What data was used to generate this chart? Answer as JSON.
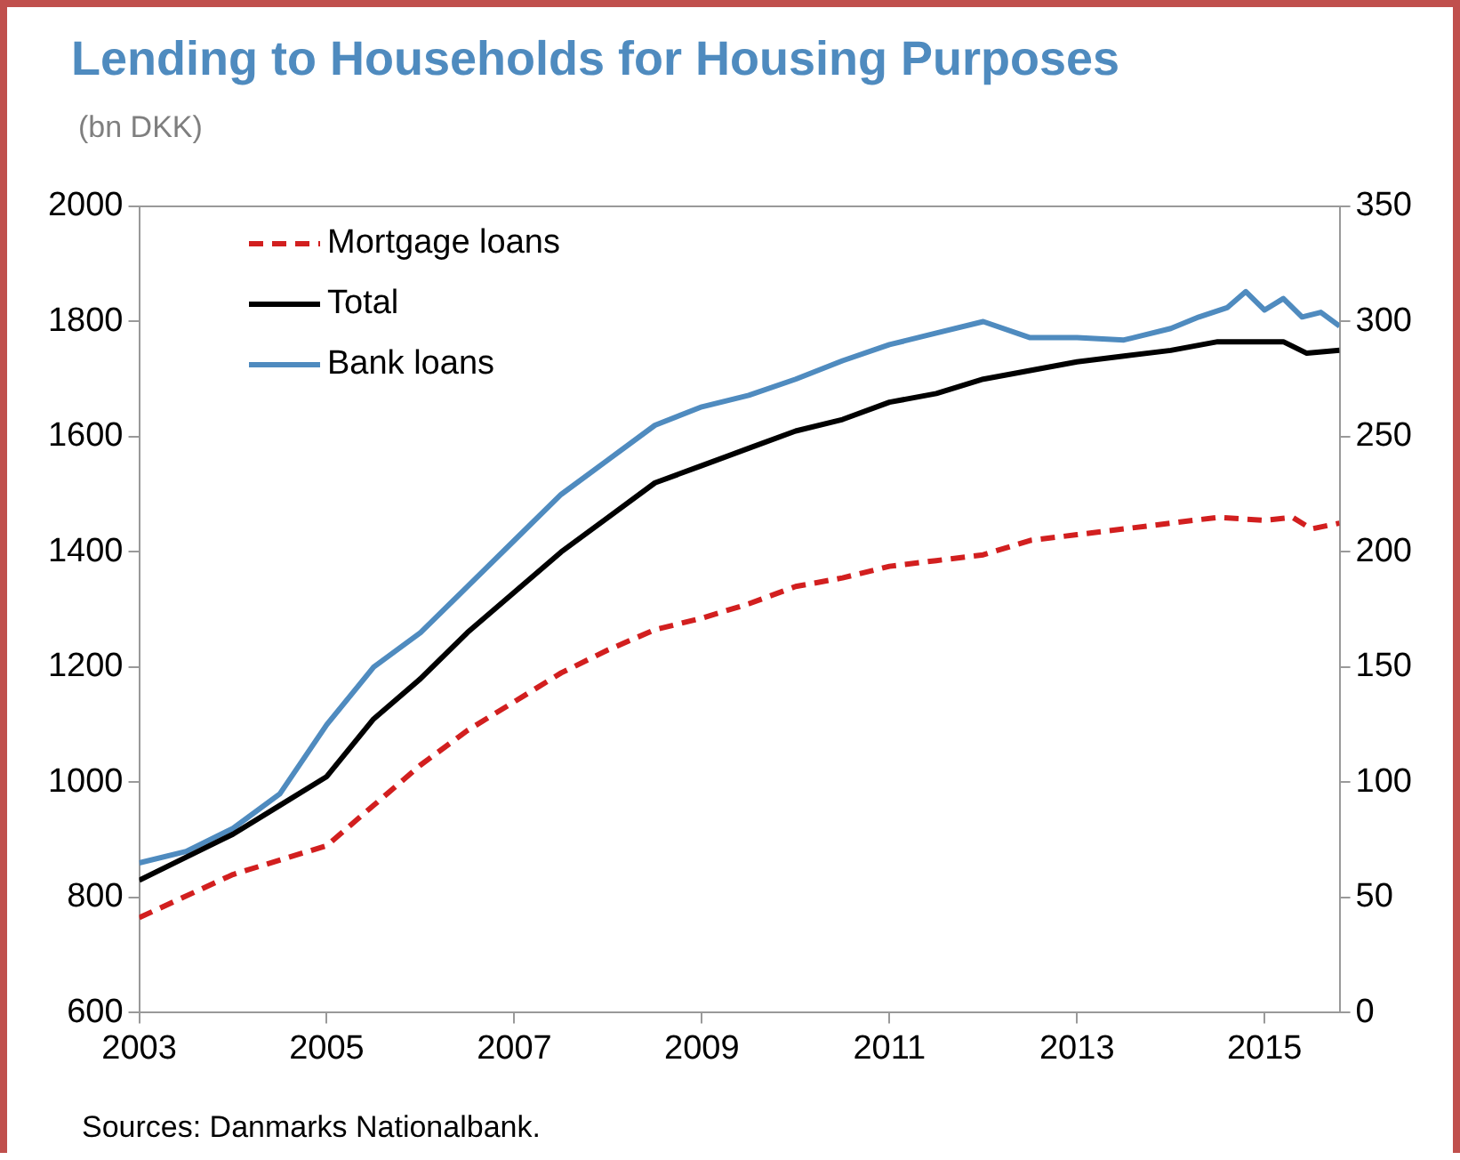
{
  "chart_data": {
    "type": "line",
    "title": "Lending to Households for Housing Purposes",
    "subtitle": "(bn DKK)",
    "annotations": [
      "Sources: Danmarks Nationalbank."
    ],
    "xlim": [
      2003,
      2015.8
    ],
    "xticks": [
      2003,
      2005,
      2007,
      2009,
      2011,
      2013,
      2015
    ],
    "ylim": [
      600,
      2000
    ],
    "yticks": [
      600,
      800,
      1000,
      1200,
      1400,
      1600,
      1800,
      2000
    ],
    "y2lim": [
      0,
      350
    ],
    "y2ticks": [
      0,
      50,
      100,
      150,
      200,
      250,
      300,
      350
    ],
    "grid": false,
    "legend": "top left",
    "marker": "none",
    "series": [
      {
        "name": "Mortgage loans",
        "color": "#d21f1f",
        "line_style": "dashed",
        "x": [
          2003,
          2004,
          2005,
          2005.5,
          2006,
          2006.5,
          2007,
          2007.5,
          2008,
          2008.5,
          2009,
          2009.5,
          2010,
          2010.5,
          2011,
          2011.5,
          2012,
          2012.5,
          2013,
          2013.5,
          2014,
          2014.5,
          2015,
          2015.3,
          2015.5,
          2015.8
        ],
        "values": [
          765,
          840,
          890,
          960,
          1030,
          1090,
          1140,
          1190,
          1230,
          1265,
          1285,
          1310,
          1340,
          1355,
          1375,
          1385,
          1395,
          1420,
          1430,
          1440,
          1450,
          1460,
          1455,
          1460,
          1440,
          1450
        ]
      },
      {
        "name": "Total",
        "color": "#000000",
        "line_style": "solid",
        "x": [
          2003,
          2003.5,
          2004,
          2004.5,
          2005,
          2005.5,
          2006,
          2006.5,
          2007,
          2007.5,
          2008,
          2008.5,
          2009,
          2009.5,
          2010,
          2010.5,
          2011,
          2011.5,
          2012,
          2012.5,
          2013,
          2013.5,
          2014,
          2014.5,
          2015,
          2015.2,
          2015.45,
          2015.8
        ],
        "values": [
          830,
          870,
          910,
          960,
          1010,
          1110,
          1180,
          1260,
          1330,
          1400,
          1460,
          1520,
          1550,
          1580,
          1610,
          1630,
          1660,
          1675,
          1700,
          1715,
          1730,
          1740,
          1750,
          1765,
          1765,
          1765,
          1745,
          1750
        ]
      },
      {
        "name": "Bank loans",
        "color": "#4f8bbf",
        "line_style": "solid",
        "axis": "y2",
        "x": [
          2003,
          2003.5,
          2004,
          2004.5,
          2005,
          2005.5,
          2006,
          2006.5,
          2007,
          2007.5,
          2008,
          2008.5,
          2009,
          2009.5,
          2010,
          2010.5,
          2011,
          2011.5,
          2012,
          2012.5,
          2013,
          2013.5,
          2014,
          2014.3,
          2014.6,
          2014.8,
          2015,
          2015.2,
          2015.4,
          2015.6,
          2015.8
        ],
        "values": [
          65,
          70,
          80,
          95,
          125,
          150,
          165,
          185,
          205,
          225,
          240,
          255,
          263,
          268,
          275,
          283,
          290,
          295,
          300,
          293,
          293,
          292,
          297,
          302,
          306,
          313,
          305,
          310,
          302,
          304,
          298
        ]
      }
    ]
  }
}
